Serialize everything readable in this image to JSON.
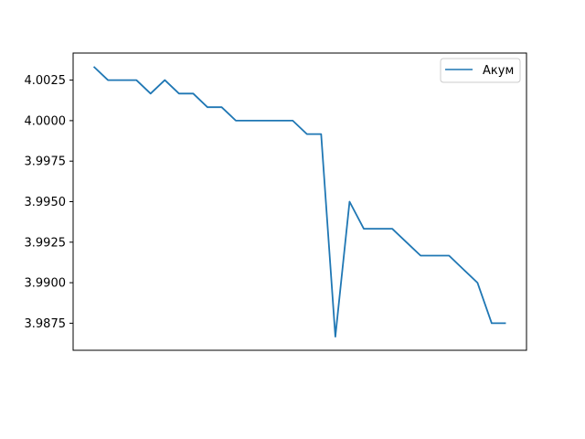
{
  "chart_data": {
    "type": "line",
    "title": "",
    "xlabel": "",
    "ylabel": "",
    "x_ticks_shown": false,
    "ylim": [
      3.98583,
      4.00417
    ],
    "yticks": [
      3.9875,
      3.99,
      3.9925,
      3.995,
      3.9975,
      4.0,
      4.0025
    ],
    "ytick_labels": [
      "3.9875",
      "3.9900",
      "3.9925",
      "3.9950",
      "3.9975",
      "4.0000",
      "4.0025"
    ],
    "grid": false,
    "legend_position": "upper right",
    "series": [
      {
        "name": "Акум",
        "color": "#1f77b4",
        "x": [
          0,
          1,
          2,
          3,
          4,
          5,
          6,
          7,
          8,
          9,
          10,
          11,
          12,
          13,
          14,
          15,
          16,
          17,
          18,
          19,
          20,
          21,
          22,
          23,
          24,
          25,
          26,
          27,
          28,
          29
        ],
        "y": [
          4.00333,
          4.0025,
          4.0025,
          4.0025,
          4.00167,
          4.0025,
          4.00167,
          4.00167,
          4.00083,
          4.00083,
          4.0,
          4.0,
          4.0,
          4.0,
          4.0,
          3.99917,
          3.99917,
          3.98667,
          3.995,
          3.99333,
          3.99333,
          3.99333,
          3.9925,
          3.99167,
          3.99167,
          3.99167,
          3.99083,
          3.99,
          3.9875,
          3.9875
        ]
      }
    ]
  }
}
